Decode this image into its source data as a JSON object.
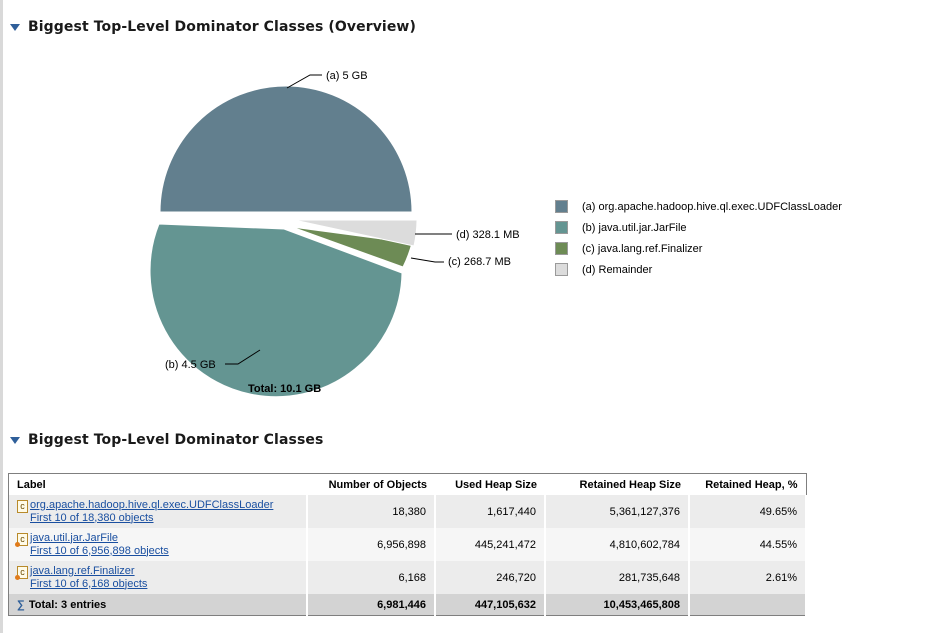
{
  "overview": {
    "title": "Biggest Top-Level Dominator Classes (Overview)",
    "total_label": "Total: 10.1 GB"
  },
  "chart_data": {
    "type": "pie",
    "total": "Total: 10.1 GB",
    "slices": [
      {
        "key": "a",
        "label": "(a)  5 GB",
        "value_gb": 5.0,
        "legend": "(a)  org.apache.hadoop.hive.ql.exec.UDFClassLoader",
        "color": "#627f8e"
      },
      {
        "key": "b",
        "label": "(b)  4.5 GB",
        "value_gb": 4.5,
        "legend": "(b)  java.util.jar.JarFile",
        "color": "#649592"
      },
      {
        "key": "c",
        "label": "(c)  268.7 MB",
        "value_gb": 0.2687,
        "legend": "(c)  java.lang.ref.Finalizer",
        "color": "#6d8b55"
      },
      {
        "key": "d",
        "label": "(d)  328.1 MB",
        "value_gb": 0.3281,
        "legend": "(d)  Remainder",
        "color": "#dcdcdc"
      }
    ]
  },
  "table_section": {
    "title": "Biggest Top-Level Dominator Classes",
    "headers": [
      "Label",
      "Number of Objects",
      "Used Heap Size",
      "Retained Heap Size",
      "Retained Heap, %"
    ],
    "rows": [
      {
        "class_name": "org.apache.hadoop.hive.ql.exec.UDFClassLoader",
        "objects_link": "First 10 of 18,380 objects",
        "num_objects": "18,380",
        "used_heap": "1,617,440",
        "retained_heap": "5,361,127,376",
        "retained_pct": "49.65%"
      },
      {
        "class_name": "java.util.jar.JarFile",
        "objects_link": "First 10 of 6,956,898 objects",
        "num_objects": "6,956,898",
        "used_heap": "445,241,472",
        "retained_heap": "4,810,602,784",
        "retained_pct": "44.55%"
      },
      {
        "class_name": "java.lang.ref.Finalizer",
        "objects_link": "First 10 of 6,168 objects",
        "num_objects": "6,168",
        "used_heap": "246,720",
        "retained_heap": "281,735,648",
        "retained_pct": "2.61%"
      }
    ],
    "total": {
      "label": "Total: 3 entries",
      "num_objects": "6,981,446",
      "used_heap": "447,105,632",
      "retained_heap": "10,453,465,808",
      "retained_pct": ""
    }
  }
}
